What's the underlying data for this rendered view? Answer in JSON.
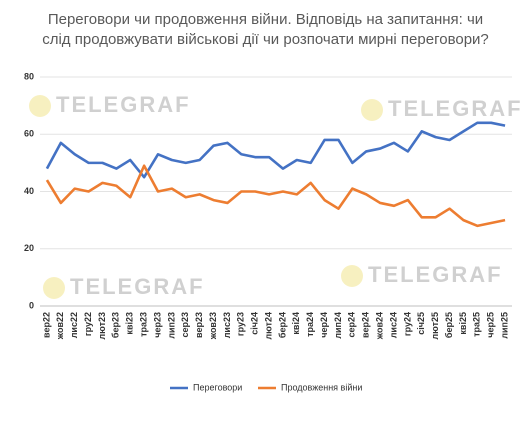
{
  "chart_data": {
    "type": "line",
    "title": "Переговори чи продовження війни. Відповідь на запитання: чи слід продовжувати військові дії чи розпочати мирні переговори?",
    "watermark": "TELEGRAF",
    "categories": [
      "вер22",
      "жов22",
      "лис22",
      "гру22",
      "лют23",
      "бер23",
      "кві23",
      "тра23",
      "чер23",
      "лип23",
      "сер23",
      "вер23",
      "жов23",
      "лис23",
      "гру23",
      "січ24",
      "лют24",
      "бер24",
      "кві24",
      "тра24",
      "чер24",
      "лип24",
      "сер24",
      "вер24",
      "жов24",
      "лис24",
      "гру24",
      "січ25",
      "лют25",
      "бер25",
      "кві25",
      "тра25",
      "чер25",
      "лип25"
    ],
    "series": [
      {
        "name": "Переговори",
        "color": "#4472c4",
        "values": [
          48,
          57,
          53,
          50,
          50,
          48,
          51,
          45,
          53,
          51,
          50,
          51,
          56,
          57,
          53,
          52,
          52,
          48,
          51,
          50,
          58,
          58,
          50,
          54,
          55,
          57,
          54,
          61,
          59,
          58,
          61,
          64,
          64,
          63
        ]
      },
      {
        "name": "Продовження війни",
        "color": "#ed7d31",
        "values": [
          44,
          36,
          41,
          40,
          43,
          42,
          38,
          49,
          40,
          41,
          38,
          39,
          37,
          36,
          40,
          40,
          39,
          40,
          39,
          43,
          37,
          34,
          41,
          39,
          36,
          35,
          37,
          31,
          31,
          34,
          30,
          28,
          29,
          30
        ]
      }
    ],
    "ylim": [
      0,
      80
    ],
    "yticks": [
      0,
      20,
      40,
      60,
      80
    ],
    "grid": true,
    "legend": "bottom"
  }
}
